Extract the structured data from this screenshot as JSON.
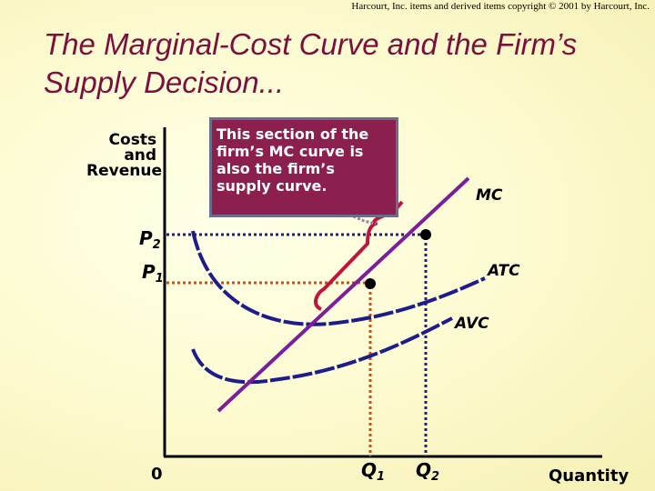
{
  "copyright": "Harcourt, Inc. items and derived items copyright © 2001 by Harcourt, Inc.",
  "title": "The Marginal-Cost Curve and the Firm’s Supply Decision...",
  "callout": "This section of the firm’s MC curve is also the firm’s supply curve.",
  "axes": {
    "y_label_lines": [
      "Costs",
      "and",
      "Revenue"
    ],
    "x_label": "Quantity",
    "origin": "0"
  },
  "curves": {
    "mc": "MC",
    "atc": "ATC",
    "avc": "AVC"
  },
  "prices": [
    {
      "main": "P",
      "sub": "2"
    },
    {
      "main": "P",
      "sub": "1"
    }
  ],
  "quantities": [
    {
      "main": "Q",
      "sub": "1"
    },
    {
      "main": "Q",
      "sub": "2"
    }
  ],
  "colors": {
    "title": "#7a1040",
    "mc": "#7c1e9c",
    "cost_curves": "#1c1c8c",
    "bracket": "#c0143c",
    "p1_guide": "#e04a00",
    "p2_guide": "#1c1c9c",
    "callout_bg": "#8b1f4d"
  }
}
